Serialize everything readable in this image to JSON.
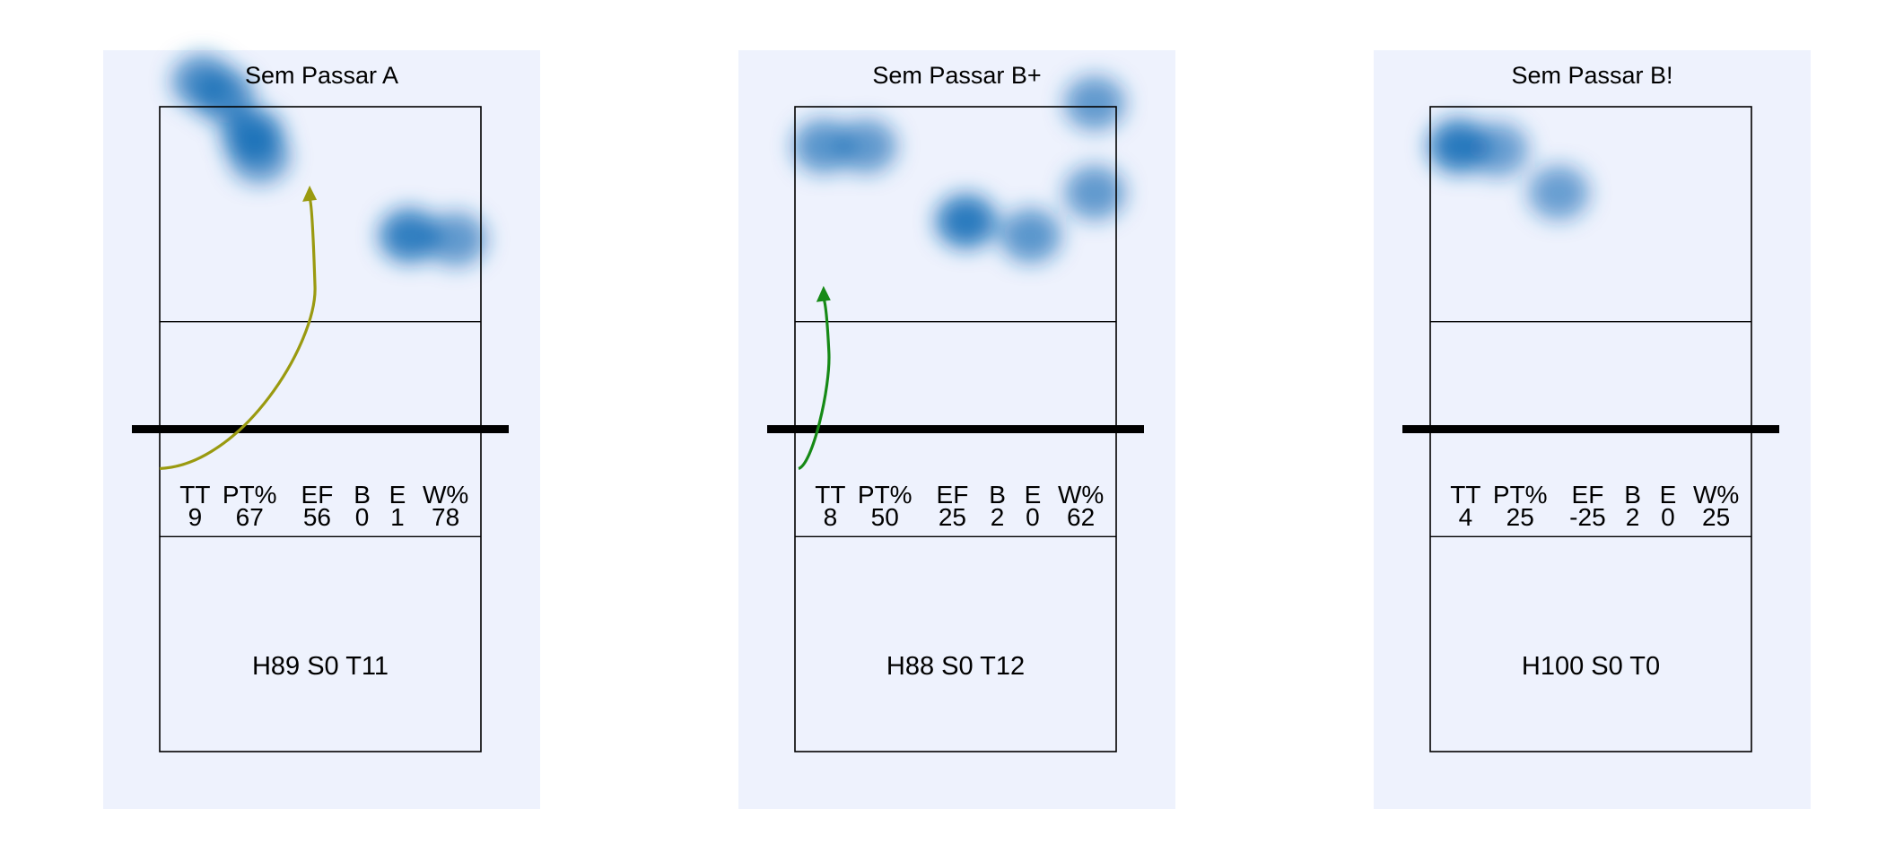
{
  "chart_data": [
    {
      "type": "heatmap",
      "title": "Sem Passar A",
      "court_color": "#eef2fd",
      "heat_color": "#1a6fb8",
      "stat_headers": [
        "TT",
        "PT%",
        "EF",
        "B",
        "E",
        "W%"
      ],
      "stat_values": [
        "9",
        "67",
        "56",
        "0",
        "1",
        "78"
      ],
      "summary": "H89 S0 T11",
      "arrow": {
        "color": "#9a9a10",
        "from": [
          0.0,
          1.1
        ],
        "to": [
          4.2,
          6.7
        ]
      },
      "hotspots": [
        {
          "x": 1.2,
          "y": 9.7,
          "intensity": 0.7
        },
        {
          "x": 1.8,
          "y": 9.3,
          "intensity": 0.75
        },
        {
          "x": 2.6,
          "y": 8.2,
          "intensity": 0.95
        },
        {
          "x": 2.8,
          "y": 7.6,
          "intensity": 0.6
        },
        {
          "x": 7.0,
          "y": 5.4,
          "intensity": 0.9
        },
        {
          "x": 8.3,
          "y": 5.3,
          "intensity": 0.6
        }
      ]
    },
    {
      "type": "heatmap",
      "title": "Sem Passar B+",
      "court_color": "#eef2fd",
      "heat_color": "#1a6fb8",
      "stat_headers": [
        "TT",
        "PT%",
        "EF",
        "B",
        "E",
        "W%"
      ],
      "stat_values": [
        "8",
        "50",
        "25",
        "2",
        "0",
        "62"
      ],
      "summary": "H88 S0 T12",
      "arrow": {
        "color": "#168a16",
        "from": [
          0.1,
          1.1
        ],
        "to": [
          0.8,
          3.9
        ]
      },
      "hotspots": [
        {
          "x": 0.8,
          "y": 7.9,
          "intensity": 0.65
        },
        {
          "x": 2.0,
          "y": 7.9,
          "intensity": 0.6
        },
        {
          "x": 8.4,
          "y": 9.1,
          "intensity": 0.6
        },
        {
          "x": 8.4,
          "y": 6.6,
          "intensity": 0.6
        },
        {
          "x": 4.8,
          "y": 5.8,
          "intensity": 0.95
        },
        {
          "x": 6.6,
          "y": 5.4,
          "intensity": 0.65
        }
      ]
    },
    {
      "type": "heatmap",
      "title": "Sem Passar B!",
      "court_color": "#eef2fd",
      "heat_color": "#1a6fb8",
      "stat_headers": [
        "TT",
        "PT%",
        "EF",
        "B",
        "E",
        "W%"
      ],
      "stat_values": [
        "4",
        "25",
        "-25",
        "2",
        "0",
        "25"
      ],
      "summary": "H100 S0 T0",
      "hotspots": [
        {
          "x": 0.8,
          "y": 7.9,
          "intensity": 0.95
        },
        {
          "x": 1.9,
          "y": 7.8,
          "intensity": 0.55
        },
        {
          "x": 3.6,
          "y": 6.6,
          "intensity": 0.55
        }
      ]
    }
  ]
}
